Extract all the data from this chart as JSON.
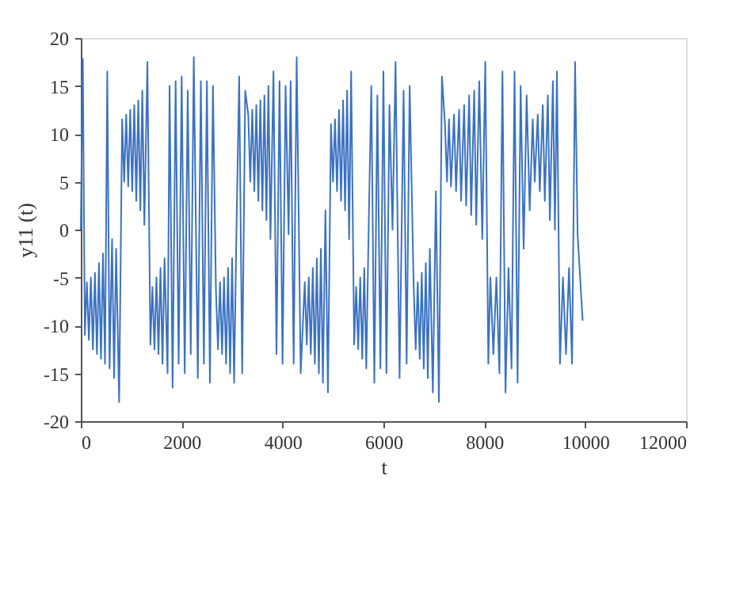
{
  "chart_data": {
    "type": "line",
    "xlabel": "t",
    "ylabel": "y11 (t)",
    "xlim": [
      0,
      12000
    ],
    "xticks": [
      0,
      2000,
      4000,
      6000,
      8000,
      10000,
      12000
    ],
    "ylim": [
      -20,
      20
    ],
    "yticks": [
      -20,
      -15,
      -10,
      -5,
      0,
      5,
      10,
      15,
      20
    ],
    "grid": false,
    "line_style": "solid",
    "marker": "none",
    "series": [
      {
        "color": "#3b72c2",
        "x": [
          0,
          40,
          80,
          120,
          160,
          200,
          240,
          280,
          320,
          360,
          400,
          440,
          480,
          525,
          570,
          620,
          660,
          700,
          760,
          820,
          860,
          900,
          940,
          980,
          1020,
          1060,
          1100,
          1140,
          1180,
          1220,
          1260,
          1320,
          1380,
          1420,
          1460,
          1500,
          1540,
          1580,
          1620,
          1660,
          1720,
          1760,
          1820,
          1880,
          1940,
          2000,
          2060,
          2120,
          2180,
          2240,
          2320,
          2380,
          2440,
          2500,
          2560,
          2620,
          2680,
          2720,
          2760,
          2800,
          2840,
          2880,
          2920,
          2960,
          3000,
          3040,
          3080,
          3140,
          3200,
          3260,
          3320,
          3360,
          3400,
          3440,
          3480,
          3520,
          3560,
          3600,
          3640,
          3680,
          3720,
          3760,
          3820,
          3880,
          3940,
          4000,
          4060,
          4120,
          4160,
          4220,
          4280,
          4360,
          4440,
          4480,
          4520,
          4560,
          4600,
          4640,
          4680,
          4720,
          4760,
          4800,
          4850,
          4900,
          4960,
          5000,
          5040,
          5080,
          5120,
          5160,
          5200,
          5240,
          5280,
          5320,
          5360,
          5420,
          5460,
          5500,
          5540,
          5580,
          5620,
          5660,
          5700,
          5760,
          5820,
          5880,
          5940,
          6000,
          6060,
          6120,
          6180,
          6240,
          6320,
          6400,
          6460,
          6520,
          6600,
          6640,
          6680,
          6720,
          6760,
          6800,
          6840,
          6880,
          6920,
          6980,
          7040,
          7100,
          7160,
          7220,
          7260,
          7300,
          7340,
          7400,
          7440,
          7500,
          7540,
          7600,
          7640,
          7700,
          7740,
          7800,
          7840,
          7900,
          7960,
          8020,
          8080,
          8120,
          8180,
          8240,
          8300,
          8360,
          8420,
          8480,
          8540,
          8600,
          8660,
          8720,
          8780,
          8840,
          8900,
          8960,
          9000,
          9060,
          9100,
          9160,
          9200,
          9260,
          9300,
          9360,
          9400,
          9440,
          9500,
          9560,
          9620,
          9680,
          9740,
          9800,
          9850,
          9950
        ],
        "values": [
          0,
          17.8,
          -11,
          -5.5,
          -11.5,
          -5,
          -12.5,
          -4.5,
          -13,
          -3.5,
          -13.5,
          -2.5,
          -14,
          16.5,
          -14.5,
          -1,
          -15.5,
          -2,
          -18,
          11.5,
          5,
          12,
          4.5,
          12.5,
          4,
          13,
          3,
          13.5,
          2,
          14.5,
          0.5,
          17.5,
          -12,
          -6,
          -12.5,
          -5,
          -13,
          -4,
          -14,
          -3,
          -15,
          15,
          -16.5,
          15.5,
          -14,
          16,
          -15,
          14.5,
          -13,
          18,
          -15.5,
          15.5,
          -14,
          15.5,
          -16,
          15,
          -6.5,
          -12.5,
          -5.5,
          -13,
          -5,
          -14,
          -4,
          -15,
          -3,
          -16,
          -2,
          16,
          -15,
          14.5,
          12,
          5,
          12.5,
          4,
          13,
          3,
          13.5,
          2,
          14,
          1,
          15,
          -1,
          16.5,
          -13,
          15.5,
          -14,
          15,
          -0.5,
          15.5,
          -14,
          18,
          -15,
          -5.5,
          -12,
          -5,
          -13,
          -4,
          -14,
          -3,
          -15,
          -2,
          -16,
          2,
          -17,
          11,
          5,
          11.5,
          4,
          12.5,
          3,
          13.5,
          2,
          14.5,
          -1,
          16.5,
          -12,
          -6,
          -12.5,
          -5,
          -13.5,
          -4,
          -14.5,
          -2,
          15,
          -16,
          14,
          -14.5,
          16.5,
          -15,
          13,
          0,
          17.5,
          -15.5,
          14.5,
          -14,
          15,
          -6,
          -12.5,
          -5.5,
          -13.5,
          -4.5,
          -14.5,
          -3.5,
          -15.5,
          -2,
          -17,
          4,
          -18,
          16,
          11,
          5,
          11.5,
          4.5,
          12,
          4,
          12.5,
          3,
          13,
          2.5,
          14,
          1.5,
          14.5,
          0.5,
          15.5,
          -1,
          17.5,
          -14,
          -5,
          -13,
          -5,
          -15,
          16.5,
          -17,
          -4,
          -14.5,
          16.5,
          -16,
          15,
          -2,
          14,
          2,
          11.5,
          5,
          12,
          4,
          13,
          3,
          14,
          1,
          15.5,
          0,
          16.5,
          -14,
          -5,
          -13,
          -4,
          -14,
          17.5,
          -0.5,
          -9.5
        ]
      }
    ]
  }
}
